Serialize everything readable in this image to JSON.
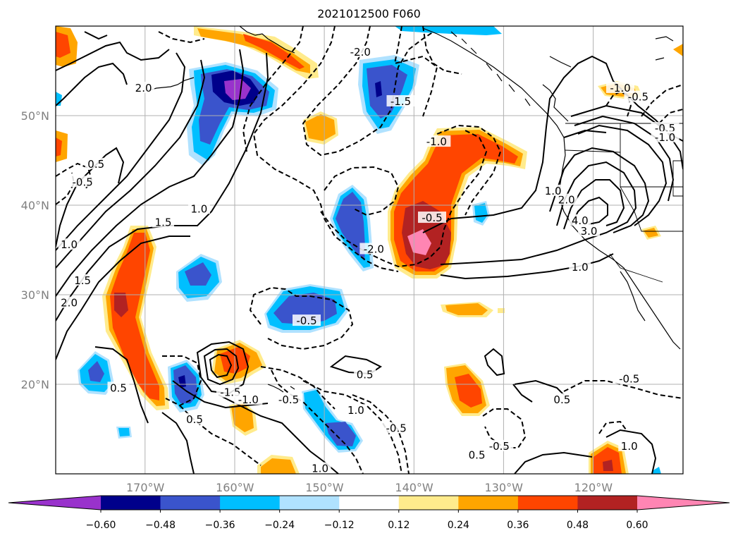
{
  "chart_data": {
    "type": "heatmap",
    "title": "2021012500 F060",
    "x_ticks": [
      "170°W",
      "160°W",
      "150°W",
      "140°W",
      "130°W",
      "120°W"
    ],
    "y_ticks": [
      "50°N",
      "40°N",
      "30°N",
      "20°N"
    ],
    "lon_range": [
      -180,
      -110
    ],
    "lat_range": [
      10,
      60
    ],
    "grid": true,
    "colorbar": {
      "orientation": "horizontal",
      "extend": "both",
      "ticks": [
        "−0.60",
        "−0.48",
        "−0.36",
        "−0.24",
        "−0.12",
        "0.12",
        "0.24",
        "0.36",
        "0.48",
        "0.60"
      ],
      "colors": [
        "#9932cc",
        "#00008b",
        "#3a54cc",
        "#00bfff",
        "#b0e2ff",
        "#ffffff",
        "#ffeb8c",
        "#ffa500",
        "#ff4500",
        "#b22222",
        "#ff85b3"
      ]
    },
    "contour_labels": [
      {
        "text": "2.0",
        "lon": -170.2,
        "lat": 53.0
      },
      {
        "text": "0.5",
        "lon": -175.5,
        "lat": 44.5
      },
      {
        "text": "-0.5",
        "lon": -177.0,
        "lat": 42.5
      },
      {
        "text": "1.5",
        "lon": -168.0,
        "lat": 38.0
      },
      {
        "text": "1.0",
        "lon": -164.0,
        "lat": 39.5
      },
      {
        "text": "1.0",
        "lon": -178.5,
        "lat": 35.5
      },
      {
        "text": "1.5",
        "lon": -177.0,
        "lat": 31.5
      },
      {
        "text": "2.0",
        "lon": -178.5,
        "lat": 29.0
      },
      {
        "text": "-2.0",
        "lon": -146.0,
        "lat": 57.0
      },
      {
        "text": "-1.5",
        "lon": -141.5,
        "lat": 51.5
      },
      {
        "text": "-1.0",
        "lon": -137.5,
        "lat": 47.0
      },
      {
        "text": "-0.5",
        "lon": -138.0,
        "lat": 38.5
      },
      {
        "text": "-2.0",
        "lon": -144.5,
        "lat": 35.0
      },
      {
        "text": "-0.5",
        "lon": -152.0,
        "lat": 27.0
      },
      {
        "text": "0.5",
        "lon": -173.0,
        "lat": 19.5
      },
      {
        "text": "-1.5",
        "lon": -160.5,
        "lat": 19.0
      },
      {
        "text": "-1.0",
        "lon": -158.5,
        "lat": 18.2
      },
      {
        "text": "-0.5",
        "lon": -154.0,
        "lat": 18.2
      },
      {
        "text": "0.5",
        "lon": -164.5,
        "lat": 16.0
      },
      {
        "text": "0.5",
        "lon": -145.5,
        "lat": 21.0
      },
      {
        "text": "1.0",
        "lon": -146.5,
        "lat": 17.0
      },
      {
        "text": "-0.5",
        "lon": -142.0,
        "lat": 15.0
      },
      {
        "text": "1.0",
        "lon": -150.5,
        "lat": 10.5
      },
      {
        "text": "0.5",
        "lon": -133.0,
        "lat": 12.0
      },
      {
        "text": "-0.5",
        "lon": -130.5,
        "lat": 13.0
      },
      {
        "text": "0.5",
        "lon": -123.5,
        "lat": 18.2
      },
      {
        "text": "-0.5",
        "lon": -116.0,
        "lat": 20.5
      },
      {
        "text": "1.0",
        "lon": -116.0,
        "lat": 13.0
      },
      {
        "text": "1.0",
        "lon": -121.5,
        "lat": 33.0
      },
      {
        "text": "3.0",
        "lon": -120.5,
        "lat": 37.0
      },
      {
        "text": "4.0",
        "lon": -121.5,
        "lat": 38.2
      },
      {
        "text": "2.0",
        "lon": -123.0,
        "lat": 40.5
      },
      {
        "text": "1.0",
        "lon": -124.5,
        "lat": 41.5
      },
      {
        "text": "-0.5",
        "lon": -115.0,
        "lat": 52.0
      },
      {
        "text": "-0.5",
        "lon": -112.0,
        "lat": 48.5
      },
      {
        "text": "-1.0",
        "lon": -112.0,
        "lat": 47.5
      },
      {
        "text": "-1.0",
        "lon": -117.0,
        "lat": 53.0
      }
    ]
  }
}
